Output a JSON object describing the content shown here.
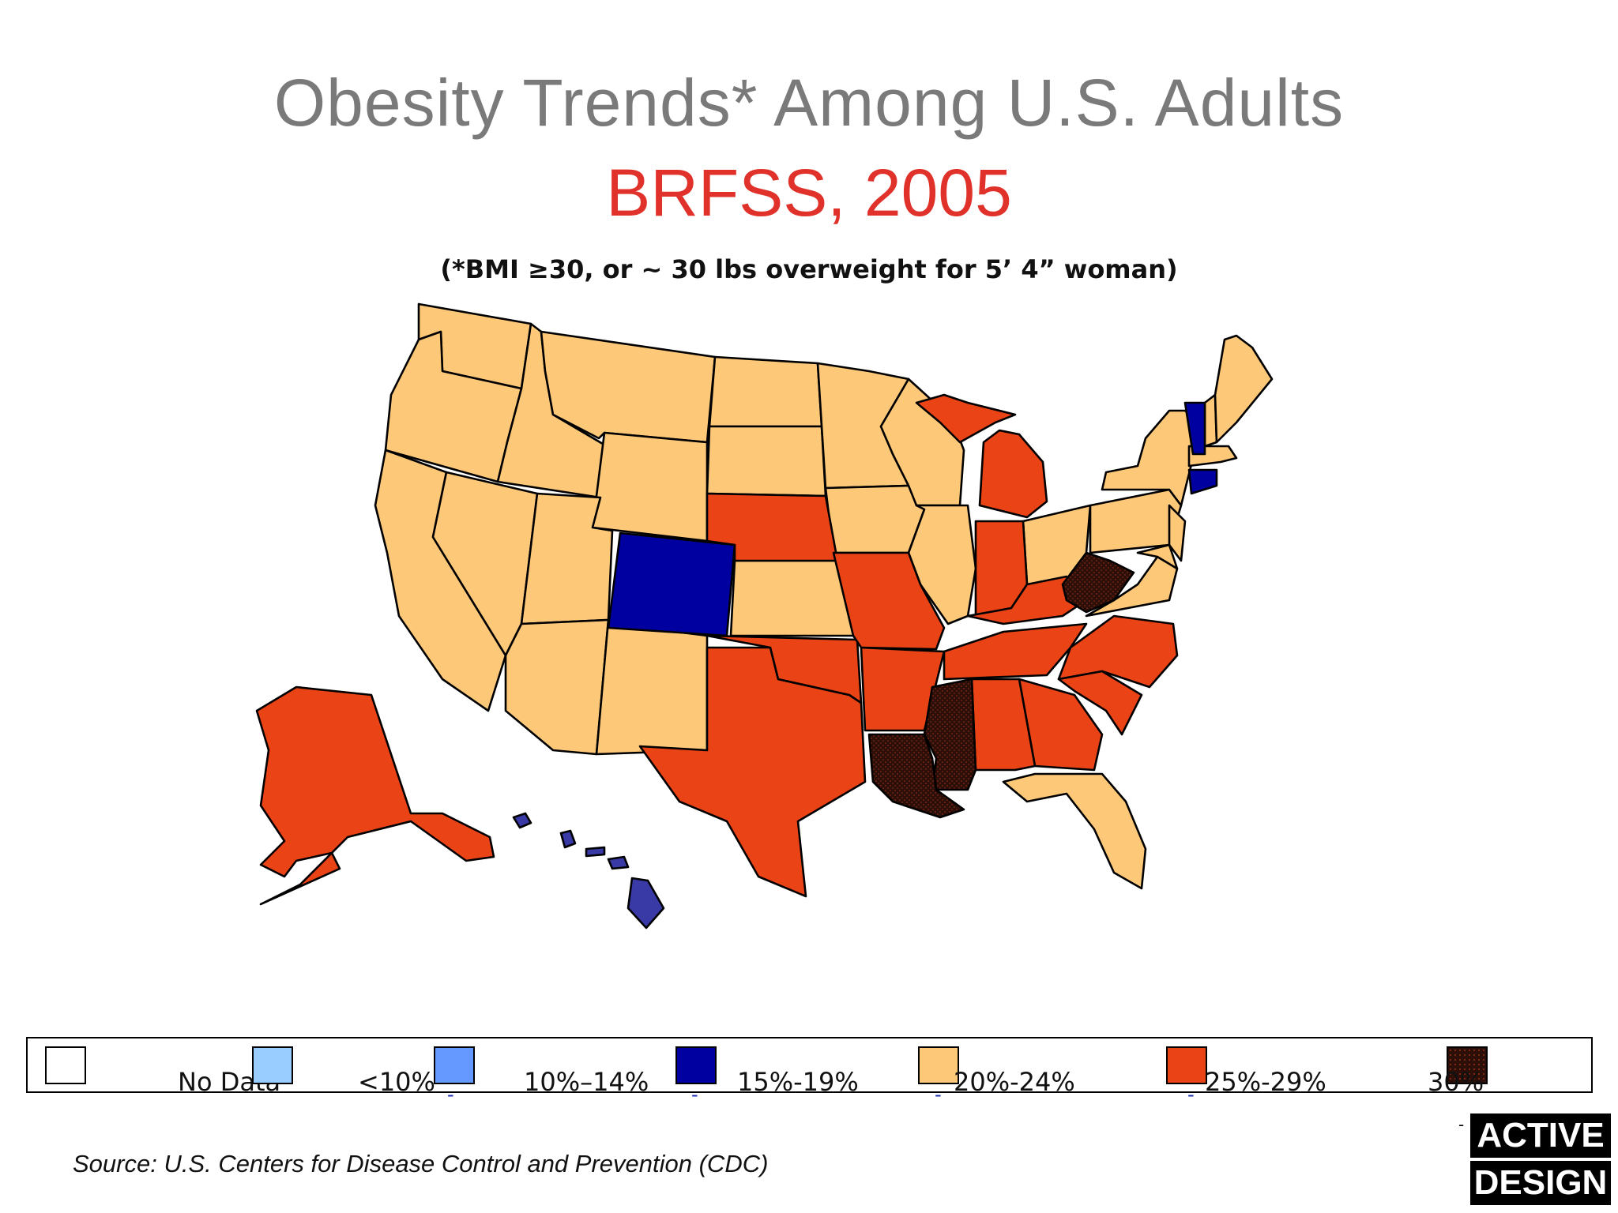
{
  "title": "Obesity Trends* Among U.S. Adults",
  "subtitle": "BRFSS, 2005",
  "note": "(*BMI ≥30, or ~ 30 lbs overweight for 5’ 4” woman)",
  "colors": {
    "no_data": "#ffffff",
    "lt10": "#99ccff",
    "p10_14": "#6699ff",
    "p15_19": "#0000a0",
    "p20_24": "#fec879",
    "p25_29": "#ea4316",
    "p30": "#2b0f08",
    "title": "#7a7a7a",
    "subtitle": "#e0312a"
  },
  "legend": [
    {
      "label": "No Data",
      "color": "#ffffff"
    },
    {
      "label": "<10%",
      "color": "#99ccff"
    },
    {
      "label": "10%–14%",
      "color": "#6699ff"
    },
    {
      "label": "15%-19%",
      "color": "#0000a0"
    },
    {
      "label": "20%-24%",
      "color": "#fec879"
    },
    {
      "label": "25%-29%",
      "color": "#ea4316"
    },
    {
      "label": "30%",
      "color": "#2b0f08"
    }
  ],
  "source": "Source: U.S. Centers for Disease Control and Prevention (CDC)",
  "logo": {
    "line1": "ACTIVE",
    "line2": "DESIGN"
  }
}
